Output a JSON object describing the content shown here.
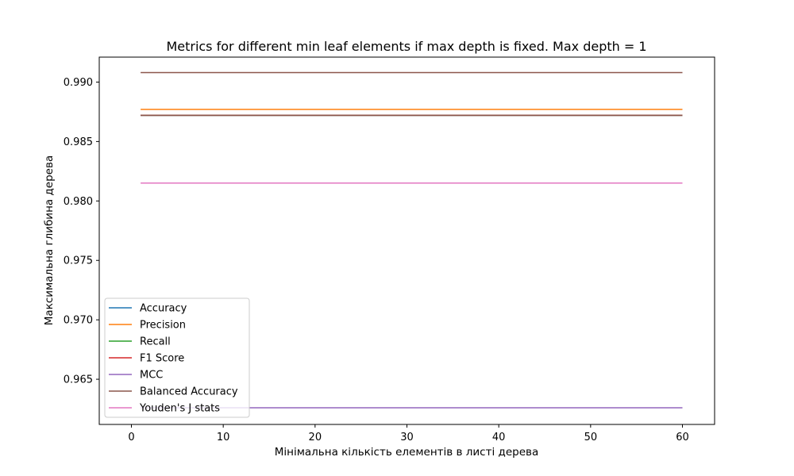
{
  "chart_data": {
    "type": "line",
    "title": "Metrics for different min leaf elements if max depth is fixed. Max depth = 1",
    "xlabel": "Мінімальна кількість елементів в листі дерева",
    "ylabel": "Максимальна глибина дерева",
    "x": [
      1,
      60
    ],
    "xlim": [
      -3.5,
      63.5
    ],
    "ylim": [
      0.9612,
      0.9921
    ],
    "xticks": [
      0,
      10,
      20,
      30,
      40,
      50,
      60
    ],
    "yticks": [
      0.965,
      0.97,
      0.975,
      0.98,
      0.985,
      0.99
    ],
    "ytick_labels": [
      "0.965",
      "0.970",
      "0.975",
      "0.980",
      "0.985",
      "0.990"
    ],
    "legend_position": "lower left",
    "series": [
      {
        "name": "Accuracy",
        "color": "#1f77b4",
        "values": [
          0.9872,
          0.9872
        ]
      },
      {
        "name": "Precision",
        "color": "#ff7f0e",
        "values": [
          0.9877,
          0.9877
        ]
      },
      {
        "name": "Recall",
        "color": "#2ca02c",
        "values": [
          0.9872,
          0.9872
        ]
      },
      {
        "name": "F1 Score",
        "color": "#d62728",
        "values": [
          0.9872,
          0.9872
        ]
      },
      {
        "name": "MCC",
        "color": "#9467bd",
        "values": [
          0.9626,
          0.9626
        ]
      },
      {
        "name": "Balanced Accuracy",
        "color": "#8c564b",
        "values": [
          0.9908,
          0.9908
        ]
      },
      {
        "name": "Youden's J stats",
        "color": "#e377c2",
        "values": [
          0.9815,
          0.9815
        ]
      }
    ],
    "extra_line_color": "#8c564b",
    "extra_line_value": 0.9872
  }
}
